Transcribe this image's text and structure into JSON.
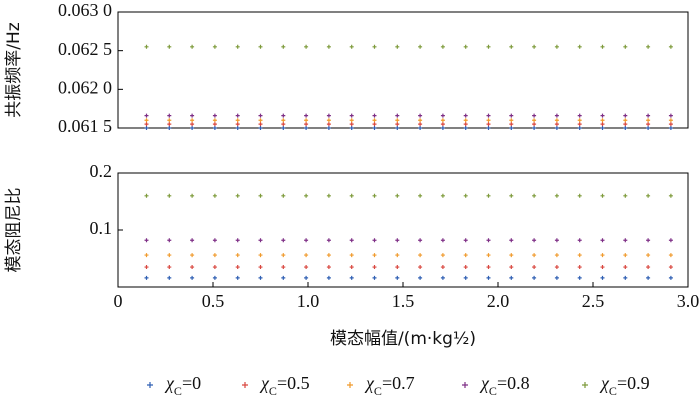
{
  "chart_data": [
    {
      "type": "scatter",
      "ylabel": "共振频率/Hz",
      "x": [
        0.15,
        0.27,
        0.39,
        0.51,
        0.63,
        0.75,
        0.87,
        0.99,
        1.11,
        1.23,
        1.35,
        1.47,
        1.59,
        1.71,
        1.83,
        1.95,
        2.07,
        2.19,
        2.31,
        2.43,
        2.55,
        2.67,
        2.79,
        2.91
      ],
      "series": [
        {
          "color": "#2f5fb3",
          "values": [
            0.0615,
            0.0615,
            0.0615,
            0.0615,
            0.0615,
            0.0615,
            0.0615,
            0.0615,
            0.0615,
            0.0615,
            0.0615,
            0.0615,
            0.0615,
            0.0615,
            0.0615,
            0.0615,
            0.0615,
            0.0615,
            0.0615,
            0.0615,
            0.0615,
            0.0615,
            0.0615,
            0.0615
          ]
        },
        {
          "color": "#d9473f",
          "values": [
            0.06155,
            0.06155,
            0.06155,
            0.06155,
            0.06155,
            0.06155,
            0.06155,
            0.06155,
            0.06155,
            0.06155,
            0.06155,
            0.06155,
            0.06155,
            0.06155,
            0.06155,
            0.06155,
            0.06155,
            0.06155,
            0.06155,
            0.06155,
            0.06155,
            0.06155,
            0.06155,
            0.06155
          ]
        },
        {
          "color": "#f09a2c",
          "values": [
            0.0616,
            0.0616,
            0.0616,
            0.0616,
            0.0616,
            0.0616,
            0.0616,
            0.0616,
            0.0616,
            0.0616,
            0.0616,
            0.0616,
            0.0616,
            0.0616,
            0.0616,
            0.0616,
            0.0616,
            0.0616,
            0.0616,
            0.0616,
            0.0616,
            0.0616,
            0.0616,
            0.0616
          ]
        },
        {
          "color": "#7e2f86",
          "values": [
            0.06166,
            0.06166,
            0.06166,
            0.06166,
            0.06166,
            0.06166,
            0.06166,
            0.06166,
            0.06166,
            0.06166,
            0.06166,
            0.06166,
            0.06166,
            0.06166,
            0.06166,
            0.06166,
            0.06166,
            0.06166,
            0.06166,
            0.06166,
            0.06166,
            0.06166,
            0.06166,
            0.06166
          ]
        },
        {
          "color": "#7d9a3a",
          "values": [
            0.06255,
            0.06255,
            0.06255,
            0.06255,
            0.06255,
            0.06255,
            0.06255,
            0.06255,
            0.06255,
            0.06255,
            0.06255,
            0.06255,
            0.06255,
            0.06255,
            0.06255,
            0.06255,
            0.06255,
            0.06255,
            0.06255,
            0.06255,
            0.06255,
            0.06255,
            0.06255,
            0.06255
          ]
        }
      ],
      "xlim": [
        0,
        3
      ],
      "ylim": [
        0.0615,
        0.063
      ],
      "yticks": [
        {
          "value": 0.0615,
          "label": "0.061 5"
        },
        {
          "value": 0.062,
          "label": "0.062 0"
        },
        {
          "value": 0.0625,
          "label": "0.062 5"
        },
        {
          "value": 0.063,
          "label": "0.063 0"
        }
      ]
    },
    {
      "type": "scatter",
      "ylabel": "模态阻尼比",
      "xlabel": "模态幅值/(m·kg½)",
      "x": [
        0.15,
        0.27,
        0.39,
        0.51,
        0.63,
        0.75,
        0.87,
        0.99,
        1.11,
        1.23,
        1.35,
        1.47,
        1.59,
        1.71,
        1.83,
        1.95,
        2.07,
        2.19,
        2.31,
        2.43,
        2.55,
        2.67,
        2.79,
        2.91
      ],
      "series": [
        {
          "name": "χC=0",
          "color": "#2f5fb3",
          "values": [
            0.016,
            0.016,
            0.016,
            0.016,
            0.016,
            0.016,
            0.016,
            0.016,
            0.016,
            0.016,
            0.016,
            0.016,
            0.016,
            0.016,
            0.016,
            0.016,
            0.016,
            0.016,
            0.016,
            0.016,
            0.016,
            0.016,
            0.016,
            0.016
          ]
        },
        {
          "name": "χC=0.5",
          "color": "#d9473f",
          "values": [
            0.035,
            0.035,
            0.035,
            0.035,
            0.035,
            0.035,
            0.035,
            0.035,
            0.035,
            0.035,
            0.035,
            0.035,
            0.035,
            0.035,
            0.035,
            0.035,
            0.035,
            0.035,
            0.035,
            0.035,
            0.035,
            0.035,
            0.035,
            0.035
          ]
        },
        {
          "name": "χC=0.7",
          "color": "#f09a2c",
          "values": [
            0.056,
            0.056,
            0.056,
            0.056,
            0.056,
            0.056,
            0.056,
            0.056,
            0.056,
            0.056,
            0.056,
            0.056,
            0.056,
            0.056,
            0.056,
            0.056,
            0.056,
            0.056,
            0.056,
            0.056,
            0.056,
            0.056,
            0.056,
            0.056
          ]
        },
        {
          "name": "χC=0.8",
          "color": "#7e2f86",
          "values": [
            0.082,
            0.082,
            0.082,
            0.082,
            0.082,
            0.082,
            0.082,
            0.082,
            0.082,
            0.082,
            0.082,
            0.082,
            0.082,
            0.082,
            0.082,
            0.082,
            0.082,
            0.082,
            0.082,
            0.082,
            0.082,
            0.082,
            0.082,
            0.082
          ]
        },
        {
          "name": "χC=0.9",
          "color": "#7d9a3a",
          "values": [
            0.16,
            0.16,
            0.16,
            0.16,
            0.16,
            0.16,
            0.16,
            0.16,
            0.16,
            0.16,
            0.16,
            0.16,
            0.16,
            0.16,
            0.16,
            0.16,
            0.16,
            0.16,
            0.16,
            0.16,
            0.16,
            0.16,
            0.16,
            0.16
          ]
        }
      ],
      "xlim": [
        0,
        3
      ],
      "xticks": [
        0,
        0.5,
        {
          "value": 1,
          "label": "1.0"
        },
        1.5,
        {
          "value": 2,
          "label": "2.0"
        },
        2.5,
        {
          "value": 3,
          "label": "3.0"
        }
      ],
      "ylim": [
        0,
        0.2
      ],
      "yticks": [
        0.1,
        0.2
      ],
      "legend": "bottom"
    }
  ]
}
